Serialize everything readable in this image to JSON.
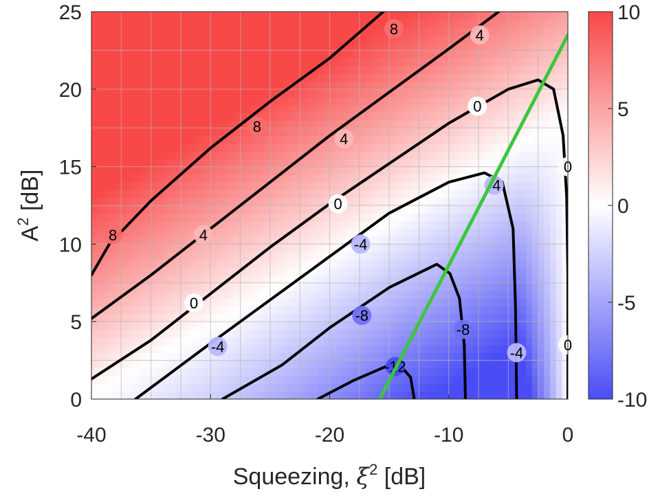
{
  "chart_data": {
    "type": "heatmap",
    "title": "",
    "xlabel": "Squeezing, ξ² [dB]",
    "xlabel_parts": {
      "text": "Squeezing, ",
      "symbol": "ξ",
      "sup": "2",
      "unit": " [dB]"
    },
    "ylabel": "A² [dB]",
    "ylabel_parts": {
      "symbol": "A",
      "sup": "2",
      "unit": " [dB]"
    },
    "xlim": [
      -40,
      0
    ],
    "ylim": [
      0,
      25
    ],
    "xticks": [
      -40,
      -30,
      -20,
      -10,
      0
    ],
    "yticks": [
      0,
      5,
      10,
      15,
      20,
      25
    ],
    "grid": true,
    "grid_step_x": 2.5,
    "grid_step_y": 2.5,
    "colorbar": {
      "range": [
        -10,
        10
      ],
      "ticks": [
        10,
        5,
        0,
        -5,
        -10
      ],
      "low_color": "#4a4df5",
      "mid_color": "#ffffff",
      "high_color": "#f84848"
    },
    "contours": [
      {
        "level": 8,
        "label": "8",
        "points": [
          [
            -40,
            8
          ],
          [
            -38.5,
            10
          ],
          [
            -35,
            12.8
          ],
          [
            -30,
            16.2
          ],
          [
            -25,
            19.2
          ],
          [
            -20,
            22
          ],
          [
            -15.5,
            25
          ]
        ],
        "label_at": [
          [
            -38.2,
            10.6
          ],
          [
            -26.1,
            17.6
          ],
          [
            -14.6,
            23.9
          ]
        ]
      },
      {
        "level": 4,
        "label": "4",
        "points": [
          [
            -40,
            5.2
          ],
          [
            -35,
            8
          ],
          [
            -30,
            11
          ],
          [
            -25,
            14
          ],
          [
            -20,
            17
          ],
          [
            -15,
            19.8
          ],
          [
            -10,
            22.6
          ],
          [
            -5.8,
            25
          ]
        ],
        "label_at": [
          [
            -30.6,
            10.6
          ],
          [
            -18.8,
            16.8
          ],
          [
            -7.4,
            23.5
          ]
        ]
      },
      {
        "level": 0,
        "label": "0",
        "points": [
          [
            -40,
            1.3
          ],
          [
            -35,
            3.8
          ],
          [
            -30,
            6.8
          ],
          [
            -25,
            9.8
          ],
          [
            -20,
            12.6
          ],
          [
            -15,
            15.2
          ],
          [
            -10,
            17.8
          ],
          [
            -5,
            20
          ],
          [
            -2.5,
            20.6
          ],
          [
            -1.2,
            20
          ],
          [
            -0.4,
            17
          ],
          [
            -0.1,
            13
          ],
          [
            0,
            8
          ],
          [
            0,
            0
          ]
        ],
        "label_at": [
          [
            -31.4,
            6.2
          ],
          [
            -19.3,
            12.6
          ],
          [
            -7.6,
            18.9
          ],
          [
            0,
            15
          ],
          [
            0,
            3.5
          ]
        ]
      },
      {
        "level": -4,
        "label": "-4",
        "points": [
          [
            -36.3,
            0
          ],
          [
            -30,
            3.6
          ],
          [
            -25,
            6.4
          ],
          [
            -20,
            9.2
          ],
          [
            -15,
            12
          ],
          [
            -10,
            14
          ],
          [
            -7,
            14.6
          ],
          [
            -5.5,
            14
          ],
          [
            -4.6,
            11
          ],
          [
            -4.4,
            6
          ],
          [
            -4.3,
            0
          ]
        ],
        "label_at": [
          [
            -29.4,
            3.4
          ],
          [
            -17.4,
            10
          ],
          [
            -6.2,
            13.8
          ],
          [
            -4.3,
            3
          ]
        ]
      },
      {
        "level": -8,
        "label": "-8",
        "points": [
          [
            -29,
            0
          ],
          [
            -24,
            2.2
          ],
          [
            -20,
            4.6
          ],
          [
            -15,
            7.2
          ],
          [
            -11,
            8.7
          ],
          [
            -9.9,
            8.1
          ],
          [
            -9.1,
            6.5
          ],
          [
            -8.7,
            3.5
          ],
          [
            -8.6,
            0
          ]
        ],
        "label_at": [
          [
            -17.3,
            5.4
          ],
          [
            -8.8,
            4.5
          ]
        ]
      },
      {
        "level": -12,
        "label": "-12",
        "points": [
          [
            -21,
            0
          ],
          [
            -18,
            1.2
          ],
          [
            -15,
            2.2
          ],
          [
            -14,
            2.1
          ],
          [
            -13.2,
            1.4
          ],
          [
            -12.9,
            0
          ]
        ],
        "label_at": [
          [
            -14.5,
            2.1
          ]
        ]
      }
    ],
    "optimal_line": {
      "color": "#3cc63c",
      "points": [
        [
          -15.8,
          0
        ],
        [
          0,
          23.5
        ]
      ]
    }
  }
}
